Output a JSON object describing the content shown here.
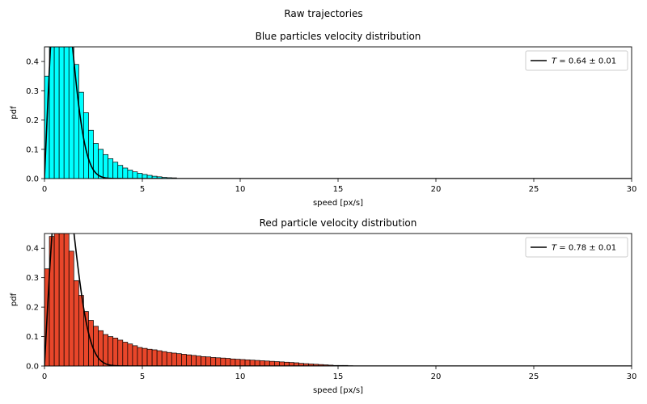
{
  "figure": {
    "suptitle": "Raw trajectories"
  },
  "chart_data": [
    {
      "type": "bar",
      "title": "Blue particles velocity distribution",
      "xlabel": "speed [px/s]",
      "ylabel": "pdf",
      "xlim": [
        0,
        30
      ],
      "ylim": [
        0,
        0.45
      ],
      "xticks": [
        0,
        5,
        10,
        15,
        20,
        25,
        30
      ],
      "yticks": [
        0.0,
        0.1,
        0.2,
        0.3,
        0.4
      ],
      "bin_width": 0.25,
      "bar_color": "#00ffff",
      "edge_color": "#000000",
      "values": [
        0.35,
        0.45,
        0.45,
        0.45,
        0.45,
        0.45,
        0.39,
        0.295,
        0.225,
        0.165,
        0.12,
        0.1,
        0.082,
        0.068,
        0.056,
        0.045,
        0.036,
        0.029,
        0.023,
        0.018,
        0.014,
        0.011,
        0.008,
        0.006,
        0.004,
        0.003,
        0.0025
      ],
      "fit": {
        "label": "$T = 0.64 \\pm 0.01$",
        "legend_text": "T = 0.64 ± 0.01",
        "legend_symbol": "T",
        "legend_value": "= 0.64 ± 0.01",
        "T": 0.64,
        "color": "#000000"
      },
      "legend_position": "upper right"
    },
    {
      "type": "bar",
      "title": "Red particle velocity distribution",
      "xlabel": "speed [px/s]",
      "ylabel": "pdf",
      "xlim": [
        0,
        30
      ],
      "ylim": [
        0,
        0.45
      ],
      "xticks": [
        0,
        5,
        10,
        15,
        20,
        25,
        30
      ],
      "yticks": [
        0.0,
        0.1,
        0.2,
        0.3,
        0.4
      ],
      "bin_width": 0.25,
      "bar_color": "#e8462a",
      "edge_color": "#000000",
      "values": [
        0.33,
        0.44,
        0.45,
        0.45,
        0.45,
        0.39,
        0.29,
        0.24,
        0.185,
        0.155,
        0.135,
        0.12,
        0.107,
        0.1,
        0.095,
        0.088,
        0.081,
        0.075,
        0.069,
        0.063,
        0.06,
        0.057,
        0.055,
        0.052,
        0.049,
        0.046,
        0.044,
        0.042,
        0.04,
        0.038,
        0.036,
        0.034,
        0.032,
        0.031,
        0.029,
        0.028,
        0.027,
        0.026,
        0.024,
        0.023,
        0.022,
        0.021,
        0.02,
        0.019,
        0.018,
        0.017,
        0.016,
        0.015,
        0.014,
        0.013,
        0.012,
        0.011,
        0.009,
        0.008,
        0.007,
        0.006,
        0.005,
        0.004,
        0.003,
        0.002,
        0.002,
        0.002,
        0.001
      ],
      "fit": {
        "label": "$T = 0.78 \\pm 0.01$",
        "legend_text": "T = 0.78 ± 0.01",
        "legend_symbol": "T",
        "legend_value": "= 0.78 ± 0.01",
        "T": 0.78,
        "color": "#000000"
      },
      "legend_position": "upper right"
    }
  ]
}
